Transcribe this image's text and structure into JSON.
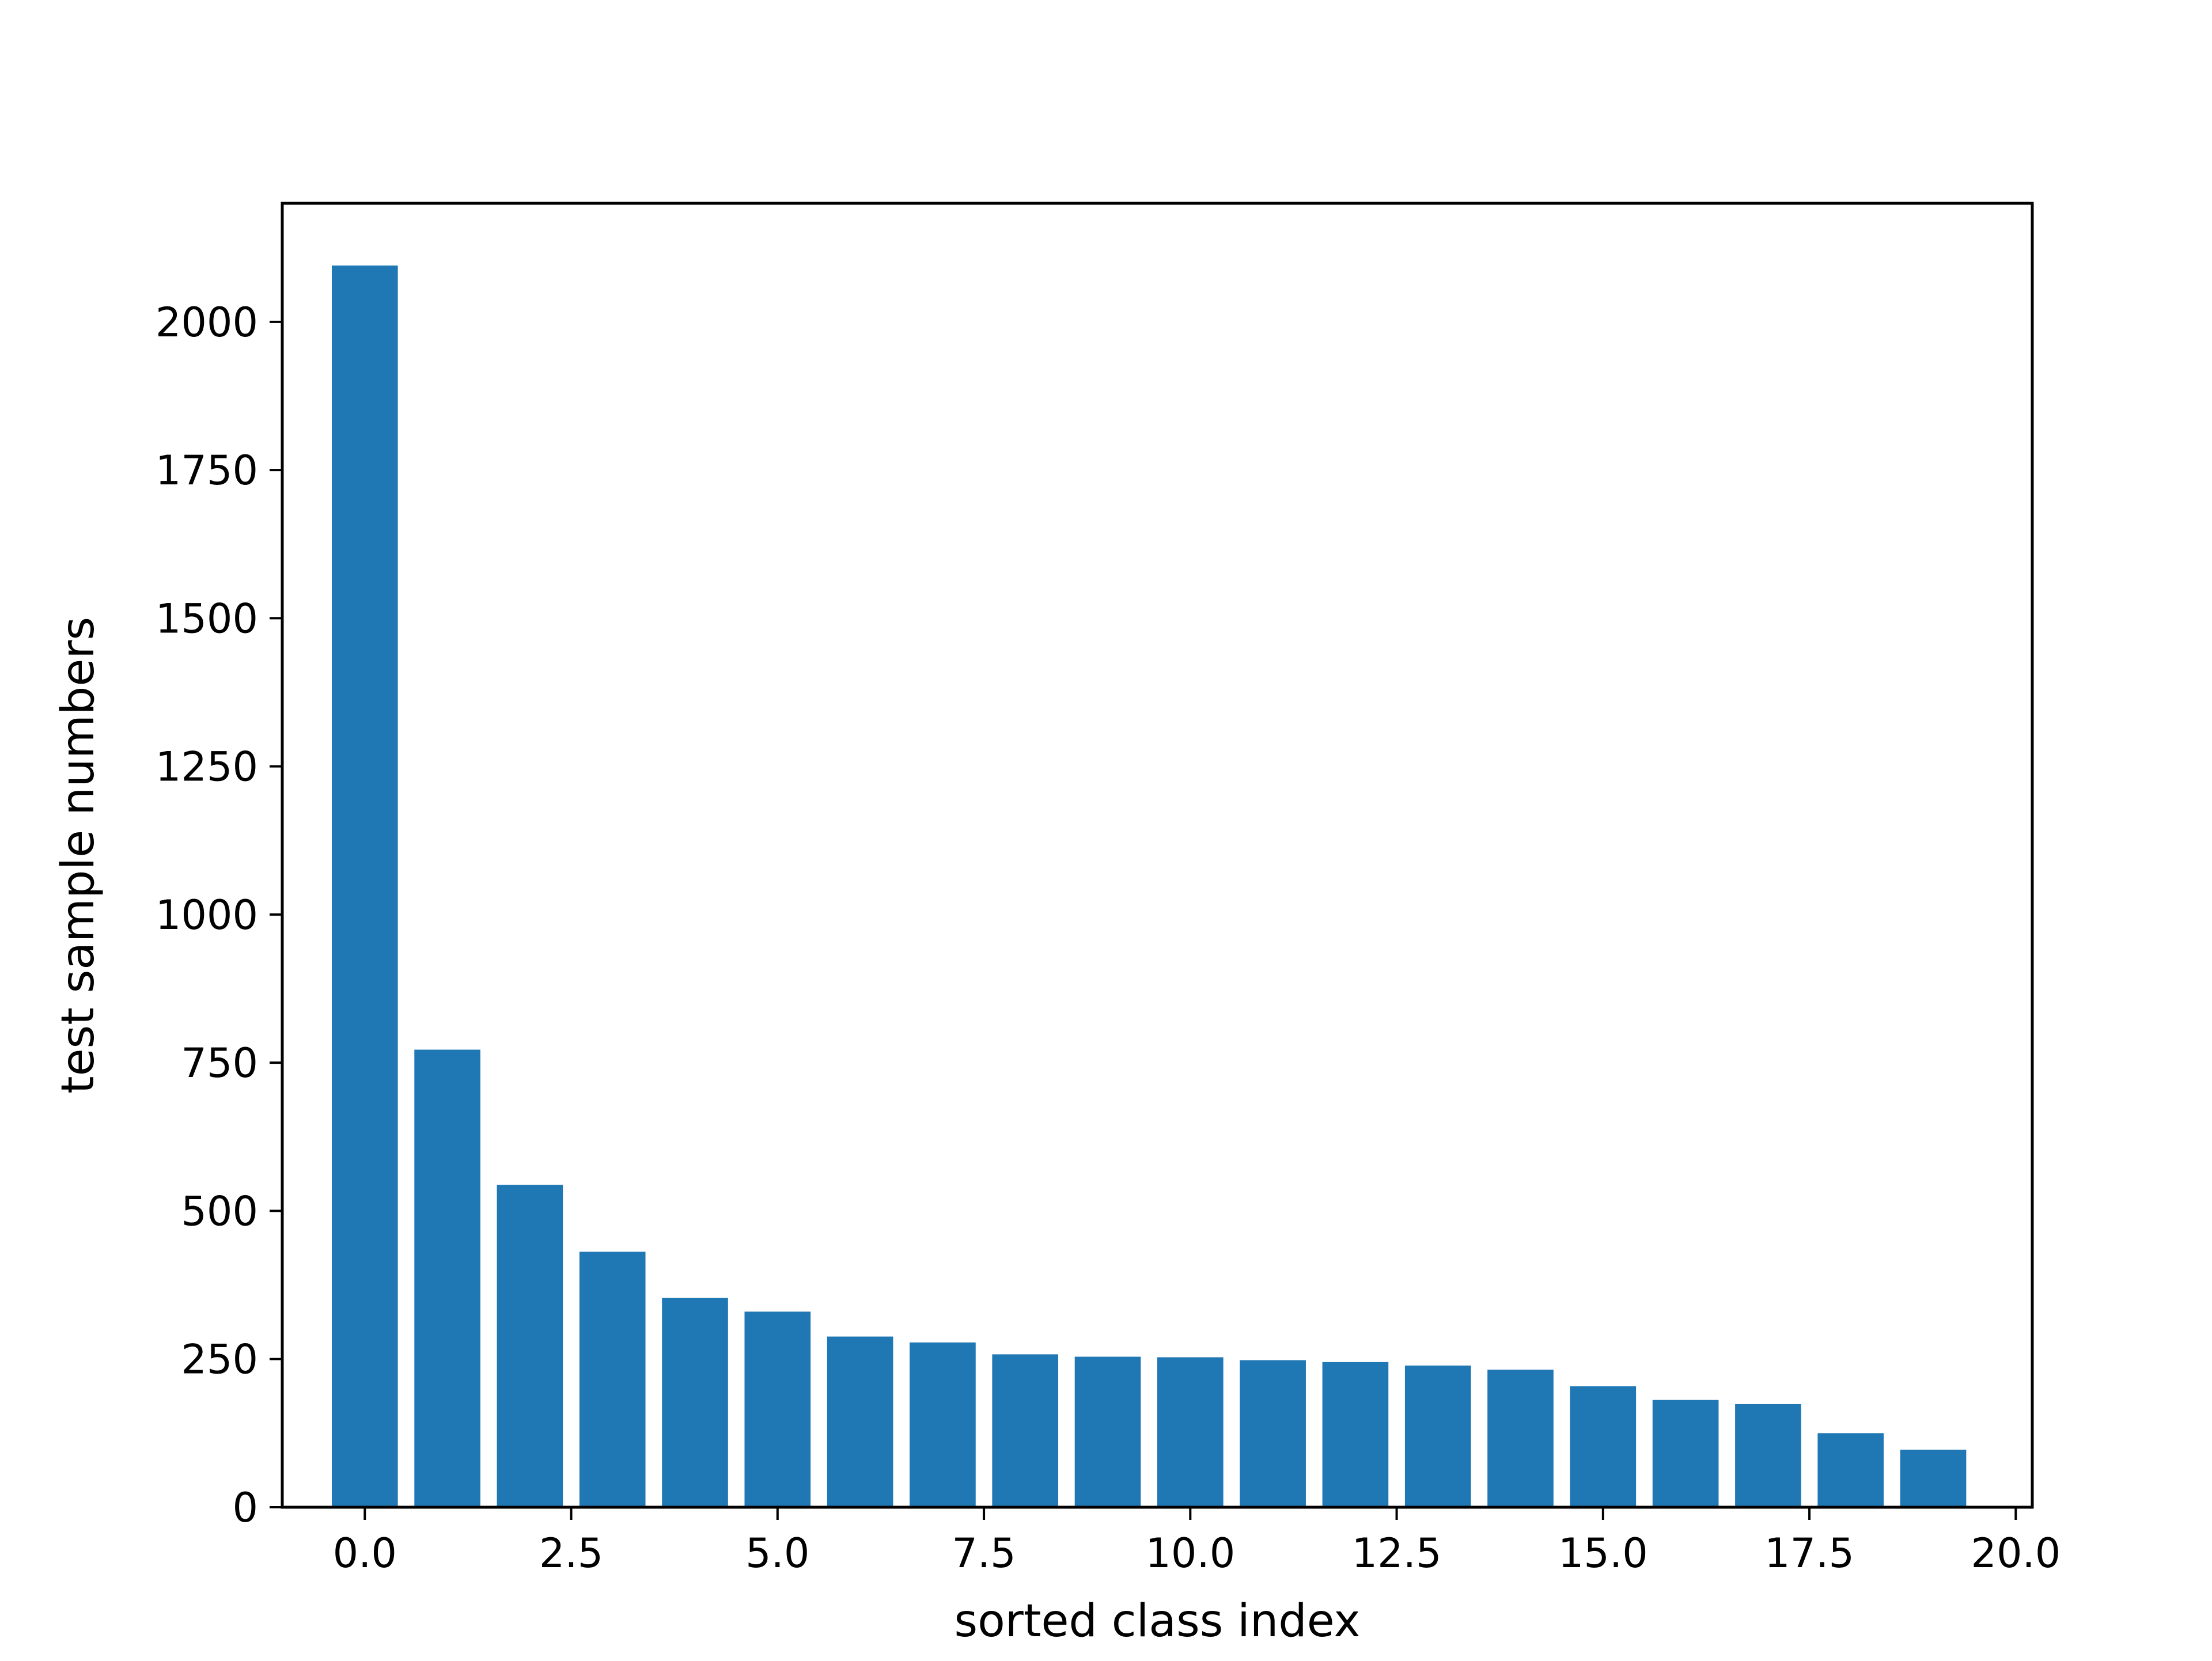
{
  "chart_data": {
    "type": "bar",
    "title": "",
    "xlabel": "sorted class index",
    "ylabel": "test sample numbers",
    "x": [
      0,
      1,
      2,
      3,
      4,
      5,
      6,
      7,
      8,
      9,
      10,
      11,
      12,
      13,
      14,
      15,
      16,
      17,
      18,
      19
    ],
    "values": [
      2095,
      772,
      544,
      431,
      353,
      330,
      288,
      278,
      258,
      254,
      253,
      248,
      245,
      239,
      232,
      204,
      181,
      174,
      125,
      97
    ],
    "xlim": [
      -1.0,
      20.2
    ],
    "ylim": [
      0,
      2200
    ],
    "xticks": [
      0.0,
      2.5,
      5.0,
      7.5,
      10.0,
      12.5,
      15.0,
      17.5,
      20.0
    ],
    "xtick_labels": [
      "0.0",
      "2.5",
      "5.0",
      "7.5",
      "10.0",
      "12.5",
      "15.0",
      "17.5",
      "20.0"
    ],
    "yticks": [
      0,
      250,
      500,
      750,
      1000,
      1250,
      1500,
      1750,
      2000
    ],
    "ytick_labels": [
      "0",
      "250",
      "500",
      "750",
      "1000",
      "1250",
      "1500",
      "1750",
      "2000"
    ],
    "bar_width": 0.8,
    "grid": false,
    "colors": {
      "bar": "#1f77b4",
      "axis": "#000000"
    }
  }
}
